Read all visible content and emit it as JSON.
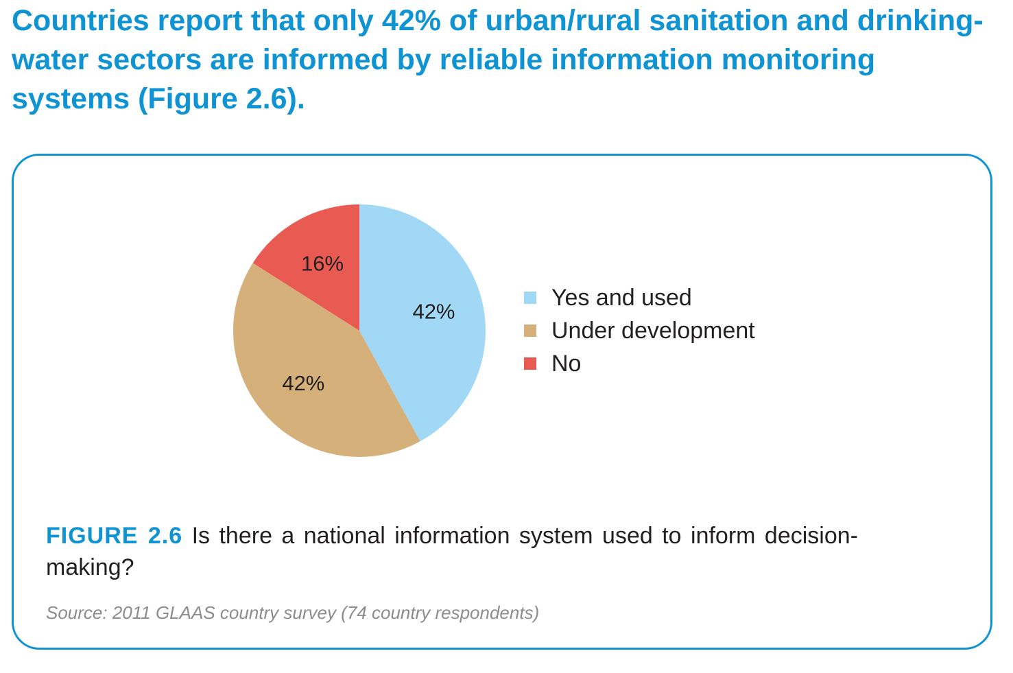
{
  "headline": "Countries report that only 42% of urban/rural sanitation and drinking-water sectors are informed by reliable information monitoring systems (Figure 2.6).",
  "colors": {
    "accent": "#0f93d2",
    "text": "#231f20",
    "source": "#8a8c8e"
  },
  "chart_data": {
    "type": "pie",
    "categories": [
      "Yes and used",
      "Under development",
      "No"
    ],
    "values": [
      42,
      42,
      16
    ],
    "labels": [
      "42%",
      "42%",
      "16%"
    ],
    "colors": [
      "#a0d8f5",
      "#d6b07a",
      "#e95a53"
    ],
    "start": "12 o'clock",
    "direction": "clockwise",
    "legend_position": "right"
  },
  "figure": {
    "label": "FIGURE 2.6",
    "caption": " Is there a national information system used to inform decision-making?",
    "source": "Source: 2011 GLAAS country survey (74 country respondents)"
  }
}
